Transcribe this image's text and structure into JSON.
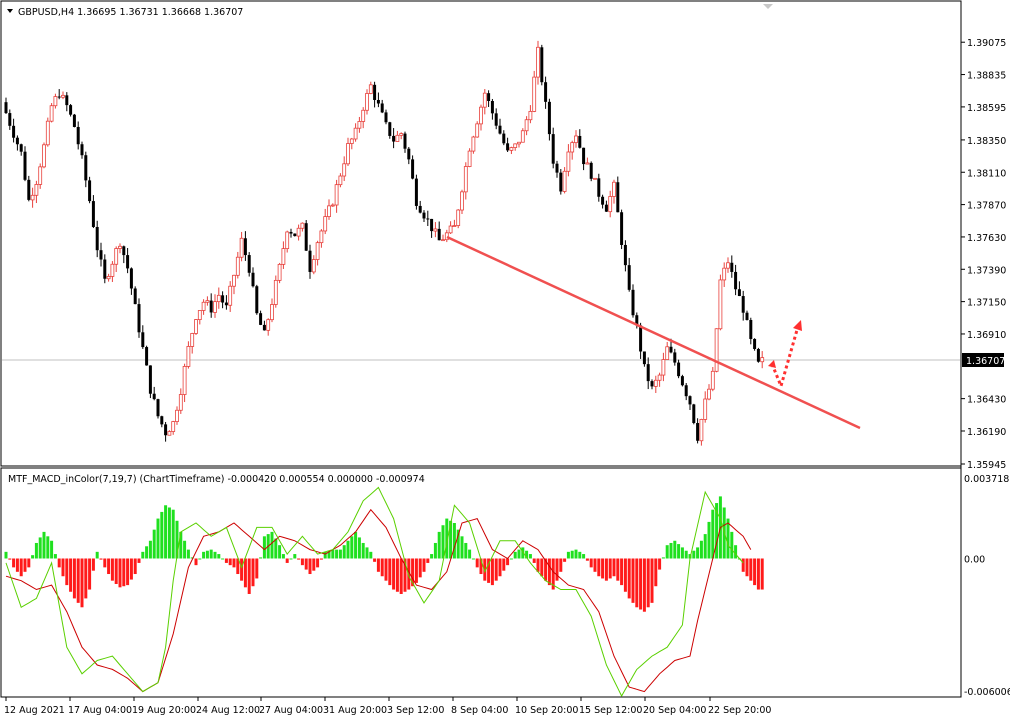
{
  "header": {
    "main_title": "GBPUSD,H4  1.36695 1.36731 1.36668 1.36707",
    "indicator_title": "MTF_MACD_inColor(7,19,7) (ChartTimeframe) -0.000420 0.000554 0.000000 -0.000974"
  },
  "price_axis": {
    "labels": [
      "1.39075",
      "1.38835",
      "1.38595",
      "1.38350",
      "1.38110",
      "1.37870",
      "1.37630",
      "1.37390",
      "1.37150",
      "1.36910",
      "1.36430",
      "1.36190",
      "1.35945"
    ],
    "current_price": "1.36707"
  },
  "indicator_axis": {
    "labels": [
      "0.003718",
      "0.00",
      "-0.006006"
    ]
  },
  "time_axis": {
    "labels": [
      "12 Aug 2021",
      "17 Aug 04:00",
      "19 Aug 20:00",
      "24 Aug 12:00",
      "27 Aug 04:00",
      "31 Aug 20:00",
      "3 Sep 12:00",
      "8 Sep 04:00",
      "10 Sep 20:00",
      "15 Sep 12:00",
      "20 Sep 04:00",
      "22 Sep 20:00"
    ]
  },
  "colors": {
    "bull": "#e8413c",
    "bear": "#000000",
    "hist_pos": "#1fe01f",
    "hist_neg": "#ff1a1a",
    "macd_line": "#5ad000",
    "signal_line": "#cc0000",
    "trendline": "#f05050",
    "arrow": "#ff3030"
  },
  "chart_data": [
    {
      "type": "candlestick",
      "title": "GBPUSD,H4  1.36695 1.36731 1.36668 1.36707",
      "ylim": [
        1.35945,
        1.39225
      ],
      "x_labels": [
        "12 Aug 2021",
        "17 Aug 04:00",
        "19 Aug 20:00",
        "24 Aug 12:00",
        "27 Aug 04:00",
        "31 Aug 20:00",
        "3 Sep 12:00",
        "8 Sep 04:00",
        "10 Sep 20:00",
        "15 Sep 12:00",
        "20 Sep 04:00",
        "22 Sep 20:00"
      ],
      "last_close": 1.36707,
      "close_path": [
        [
          0,
          1.3855
        ],
        [
          2,
          1.384
        ],
        [
          4,
          1.3825
        ],
        [
          6,
          1.379
        ],
        [
          8,
          1.3805
        ],
        [
          10,
          1.383
        ],
        [
          12,
          1.386
        ],
        [
          14,
          1.387
        ],
        [
          16,
          1.386
        ],
        [
          18,
          1.3845
        ],
        [
          20,
          1.382
        ],
        [
          22,
          1.379
        ],
        [
          24,
          1.3755
        ],
        [
          26,
          1.373
        ],
        [
          28,
          1.3745
        ],
        [
          30,
          1.376
        ],
        [
          32,
          1.374
        ],
        [
          34,
          1.371
        ],
        [
          36,
          1.368
        ],
        [
          38,
          1.365
        ],
        [
          40,
          1.363
        ],
        [
          42,
          1.3618
        ],
        [
          44,
          1.3625
        ],
        [
          46,
          1.365
        ],
        [
          48,
          1.368
        ],
        [
          50,
          1.3705
        ],
        [
          52,
          1.3715
        ],
        [
          54,
          1.371
        ],
        [
          56,
          1.372
        ],
        [
          58,
          1.371
        ],
        [
          60,
          1.3735
        ],
        [
          62,
          1.376
        ],
        [
          64,
          1.374
        ],
        [
          66,
          1.3705
        ],
        [
          68,
          1.369
        ],
        [
          70,
          1.3715
        ],
        [
          72,
          1.374
        ],
        [
          74,
          1.377
        ],
        [
          76,
          1.3765
        ],
        [
          78,
          1.377
        ],
        [
          80,
          1.374
        ],
        [
          82,
          1.376
        ],
        [
          84,
          1.3775
        ],
        [
          86,
          1.379
        ],
        [
          88,
          1.381
        ],
        [
          90,
          1.383
        ],
        [
          92,
          1.384
        ],
        [
          94,
          1.386
        ],
        [
          96,
          1.3875
        ],
        [
          98,
          1.386
        ],
        [
          100,
          1.3845
        ],
        [
          102,
          1.3835
        ],
        [
          104,
          1.384
        ],
        [
          106,
          1.382
        ],
        [
          108,
          1.379
        ],
        [
          110,
          1.378
        ],
        [
          112,
          1.377
        ],
        [
          114,
          1.376
        ],
        [
          116,
          1.3765
        ],
        [
          118,
          1.377
        ],
        [
          120,
          1.38
        ],
        [
          122,
          1.383
        ],
        [
          124,
          1.385
        ],
        [
          126,
          1.387
        ],
        [
          128,
          1.3855
        ],
        [
          130,
          1.384
        ],
        [
          132,
          1.3825
        ],
        [
          134,
          1.383
        ],
        [
          136,
          1.384
        ],
        [
          138,
          1.386
        ],
        [
          140,
          1.39
        ],
        [
          142,
          1.386
        ],
        [
          144,
          1.382
        ],
        [
          146,
          1.38
        ],
        [
          148,
          1.383
        ],
        [
          150,
          1.384
        ],
        [
          152,
          1.382
        ],
        [
          154,
          1.381
        ],
        [
          156,
          1.3795
        ],
        [
          158,
          1.3785
        ],
        [
          160,
          1.38
        ],
        [
          162,
          1.376
        ],
        [
          164,
          1.372
        ],
        [
          166,
          1.3695
        ],
        [
          168,
          1.3665
        ],
        [
          170,
          1.365
        ],
        [
          172,
          1.366
        ],
        [
          174,
          1.368
        ],
        [
          176,
          1.367
        ],
        [
          178,
          1.3655
        ],
        [
          180,
          1.364
        ],
        [
          182,
          1.3615
        ],
        [
          184,
          1.364
        ],
        [
          186,
          1.366
        ],
        [
          188,
          1.373
        ],
        [
          190,
          1.3745
        ],
        [
          192,
          1.3725
        ],
        [
          194,
          1.371
        ],
        [
          196,
          1.3685
        ],
        [
          198,
          1.3668
        ],
        [
          199,
          1.36707
        ]
      ]
    },
    {
      "type": "bar+line",
      "title": "MTF_MACD_inColor(7,19,7) (ChartTimeframe) -0.000420 0.000554 0.000000 -0.000974",
      "ylim": [
        -0.0062,
        0.0039
      ],
      "histogram": [
        [
          0,
          0.0003
        ],
        [
          2,
          -0.0004
        ],
        [
          4,
          -0.0008
        ],
        [
          6,
          -0.0004
        ],
        [
          8,
          0.0007
        ],
        [
          10,
          0.0012
        ],
        [
          12,
          0.0008
        ],
        [
          14,
          -0.0004
        ],
        [
          16,
          -0.0012
        ],
        [
          18,
          -0.0018
        ],
        [
          20,
          -0.0022
        ],
        [
          22,
          -0.0014
        ],
        [
          24,
          0.0003
        ],
        [
          26,
          -0.0004
        ],
        [
          28,
          -0.001
        ],
        [
          30,
          -0.0013
        ],
        [
          32,
          -0.0012
        ],
        [
          34,
          -0.0007
        ],
        [
          36,
          0.0003
        ],
        [
          38,
          0.0008
        ],
        [
          40,
          0.0018
        ],
        [
          42,
          0.0024
        ],
        [
          44,
          0.0022
        ],
        [
          46,
          0.0012
        ],
        [
          48,
          0.0004
        ],
        [
          50,
          -0.0003
        ],
        [
          52,
          0.0003
        ],
        [
          54,
          0.0004
        ],
        [
          56,
          0.0002
        ],
        [
          58,
          -0.0002
        ],
        [
          60,
          -0.0004
        ],
        [
          62,
          -0.001
        ],
        [
          64,
          -0.0016
        ],
        [
          66,
          -0.0009
        ],
        [
          68,
          0.001
        ],
        [
          70,
          0.0012
        ],
        [
          72,
          0.0006
        ],
        [
          74,
          -0.0002
        ],
        [
          76,
          0.0002
        ],
        [
          78,
          -0.0003
        ],
        [
          80,
          -0.0007
        ],
        [
          82,
          -0.0004
        ],
        [
          84,
          0.0003
        ],
        [
          86,
          0.0004
        ],
        [
          88,
          0.0004
        ],
        [
          90,
          0.0008
        ],
        [
          92,
          0.0012
        ],
        [
          94,
          0.0007
        ],
        [
          96,
          0.0003
        ],
        [
          98,
          -0.0006
        ],
        [
          100,
          -0.001
        ],
        [
          102,
          -0.0014
        ],
        [
          104,
          -0.0016
        ],
        [
          106,
          -0.0014
        ],
        [
          108,
          -0.0011
        ],
        [
          110,
          -0.0006
        ],
        [
          112,
          0.0002
        ],
        [
          114,
          0.0012
        ],
        [
          116,
          0.0018
        ],
        [
          118,
          0.0016
        ],
        [
          120,
          0.001
        ],
        [
          122,
          0.0004
        ],
        [
          124,
          -0.0004
        ],
        [
          126,
          -0.001
        ],
        [
          128,
          -0.0012
        ],
        [
          130,
          -0.0008
        ],
        [
          132,
          -0.0003
        ],
        [
          134,
          0.0003
        ],
        [
          136,
          0.0005
        ],
        [
          138,
          0.0002
        ],
        [
          140,
          -0.0006
        ],
        [
          142,
          -0.001
        ],
        [
          144,
          -0.0014
        ],
        [
          146,
          -0.0006
        ],
        [
          148,
          0.0003
        ],
        [
          150,
          0.0004
        ],
        [
          152,
          0.0002
        ],
        [
          154,
          -0.0004
        ],
        [
          156,
          -0.0008
        ],
        [
          158,
          -0.001
        ],
        [
          160,
          -0.0008
        ],
        [
          162,
          -0.0012
        ],
        [
          164,
          -0.0018
        ],
        [
          166,
          -0.0022
        ],
        [
          168,
          -0.0024
        ],
        [
          170,
          -0.002
        ],
        [
          172,
          -0.0005
        ],
        [
          174,
          0.0006
        ],
        [
          176,
          0.0008
        ],
        [
          178,
          0.0005
        ],
        [
          180,
          0.0002
        ],
        [
          182,
          0.0005
        ],
        [
          184,
          0.0011
        ],
        [
          186,
          0.0022
        ],
        [
          188,
          0.0028
        ],
        [
          190,
          0.0018
        ],
        [
          192,
          0.0006
        ],
        [
          194,
          -0.0006
        ],
        [
          196,
          -0.001
        ],
        [
          198,
          -0.0014
        ]
      ],
      "macd_line": [
        [
          0,
          -0.0002
        ],
        [
          4,
          -0.0022
        ],
        [
          8,
          -0.0018
        ],
        [
          12,
          -0.0002
        ],
        [
          16,
          -0.004
        ],
        [
          20,
          -0.0052
        ],
        [
          24,
          -0.0046
        ],
        [
          28,
          -0.0044
        ],
        [
          32,
          -0.0052
        ],
        [
          36,
          -0.006
        ],
        [
          40,
          -0.0056
        ],
        [
          42,
          -0.004
        ],
        [
          44,
          -0.001
        ],
        [
          46,
          0.0012
        ],
        [
          50,
          0.0016
        ],
        [
          54,
          0.001
        ],
        [
          58,
          0.0014
        ],
        [
          62,
          -0.0004
        ],
        [
          66,
          0.0014
        ],
        [
          70,
          0.0014
        ],
        [
          74,
          0.0002
        ],
        [
          78,
          0.001
        ],
        [
          82,
          0.0002
        ],
        [
          86,
          0.0004
        ],
        [
          90,
          0.0012
        ],
        [
          94,
          0.0026
        ],
        [
          98,
          0.0032
        ],
        [
          102,
          0.0018
        ],
        [
          106,
          -0.0008
        ],
        [
          110,
          -0.002
        ],
        [
          114,
          -0.001
        ],
        [
          118,
          0.0024
        ],
        [
          122,
          0.0016
        ],
        [
          126,
          -0.0006
        ],
        [
          130,
          0.0008
        ],
        [
          134,
          0.0008
        ],
        [
          138,
          -0.0002
        ],
        [
          142,
          -0.001
        ],
        [
          146,
          -0.0014
        ],
        [
          150,
          -0.0014
        ],
        [
          154,
          -0.0026
        ],
        [
          158,
          -0.0048
        ],
        [
          162,
          -0.0062
        ],
        [
          166,
          -0.005
        ],
        [
          170,
          -0.0044
        ],
        [
          174,
          -0.004
        ],
        [
          178,
          -0.003
        ],
        [
          180,
          0.0
        ],
        [
          184,
          0.003
        ],
        [
          188,
          0.0018
        ],
        [
          190,
          0.0006
        ],
        [
          194,
          -0.0002
        ]
      ],
      "signal_line": [
        [
          0,
          -0.0008
        ],
        [
          4,
          -0.001
        ],
        [
          8,
          -0.0014
        ],
        [
          12,
          -0.0012
        ],
        [
          16,
          -0.0024
        ],
        [
          20,
          -0.004
        ],
        [
          24,
          -0.0048
        ],
        [
          28,
          -0.005
        ],
        [
          32,
          -0.0054
        ],
        [
          36,
          -0.006
        ],
        [
          40,
          -0.0056
        ],
        [
          44,
          -0.0034
        ],
        [
          48,
          -0.0004
        ],
        [
          52,
          0.001
        ],
        [
          56,
          0.0012
        ],
        [
          60,
          0.0016
        ],
        [
          64,
          0.001
        ],
        [
          68,
          0.0004
        ],
        [
          72,
          0.001
        ],
        [
          76,
          0.0008
        ],
        [
          80,
          0.0004
        ],
        [
          84,
          0.0002
        ],
        [
          88,
          0.0006
        ],
        [
          92,
          0.0012
        ],
        [
          96,
          0.0022
        ],
        [
          100,
          0.0014
        ],
        [
          104,
          0.0
        ],
        [
          108,
          -0.0012
        ],
        [
          112,
          -0.0014
        ],
        [
          116,
          -0.0006
        ],
        [
          120,
          0.0016
        ],
        [
          124,
          0.0018
        ],
        [
          128,
          0.0004
        ],
        [
          132,
          0.0
        ],
        [
          136,
          0.0008
        ],
        [
          140,
          0.0004
        ],
        [
          144,
          -0.0006
        ],
        [
          148,
          -0.0012
        ],
        [
          152,
          -0.0014
        ],
        [
          156,
          -0.0024
        ],
        [
          160,
          -0.0044
        ],
        [
          164,
          -0.0058
        ],
        [
          168,
          -0.006
        ],
        [
          172,
          -0.0052
        ],
        [
          176,
          -0.0046
        ],
        [
          180,
          -0.0044
        ],
        [
          182,
          -0.0028
        ],
        [
          186,
          0.0
        ],
        [
          188,
          0.0014
        ],
        [
          190,
          0.0016
        ],
        [
          194,
          0.001
        ],
        [
          196,
          0.0004
        ]
      ],
      "zero_label": "0.00"
    }
  ]
}
